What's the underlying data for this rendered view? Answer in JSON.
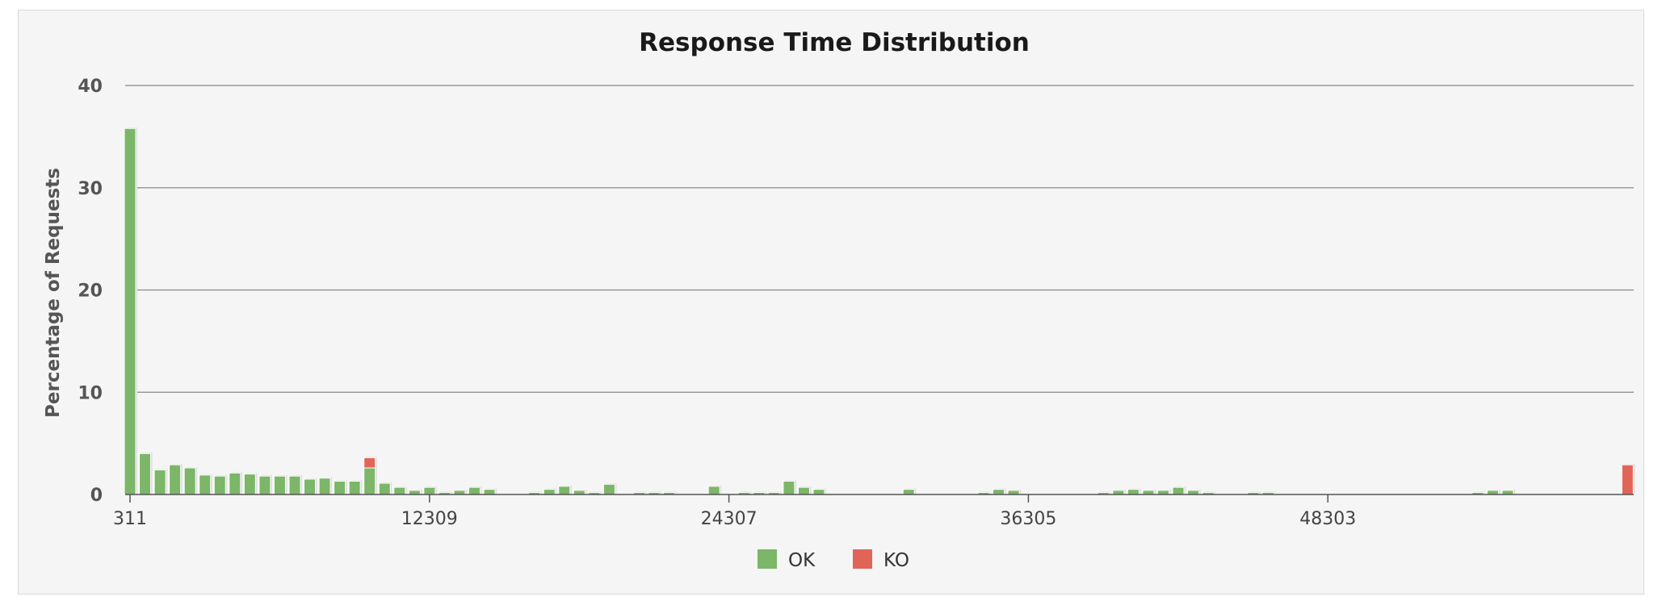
{
  "chart_data": {
    "type": "bar",
    "stacked": true,
    "title": "Response Time Distribution",
    "xlabel": "",
    "ylabel": "Percentage of Requests",
    "ylim": [
      0,
      40
    ],
    "yticks": [
      "0",
      "10",
      "20",
      "30",
      "40"
    ],
    "xlim": [
      311,
      60300
    ],
    "xticks": [
      311,
      12309,
      24307,
      36305,
      48303
    ],
    "grid": true,
    "legend_position": "bottom",
    "colors": {
      "OK": "#7cb668",
      "KO": "#e06558"
    },
    "series": [
      {
        "name": "OK",
        "points": [
          [
            311,
            35.8
          ],
          [
            911,
            4.0
          ],
          [
            1511,
            2.4
          ],
          [
            2111,
            2.9
          ],
          [
            2711,
            2.6
          ],
          [
            3311,
            1.9
          ],
          [
            3911,
            1.8
          ],
          [
            4511,
            2.1
          ],
          [
            5111,
            2.0
          ],
          [
            5711,
            1.8
          ],
          [
            6311,
            1.8
          ],
          [
            6911,
            1.8
          ],
          [
            7511,
            1.5
          ],
          [
            8111,
            1.6
          ],
          [
            8711,
            1.3
          ],
          [
            9311,
            1.3
          ],
          [
            9911,
            2.6
          ],
          [
            10511,
            1.1
          ],
          [
            11111,
            0.7
          ],
          [
            11711,
            0.4
          ],
          [
            12311,
            0.7
          ],
          [
            12911,
            0.2
          ],
          [
            13511,
            0.4
          ],
          [
            14111,
            0.7
          ],
          [
            14711,
            0.5
          ],
          [
            16511,
            0.2
          ],
          [
            17111,
            0.5
          ],
          [
            17711,
            0.8
          ],
          [
            18311,
            0.4
          ],
          [
            18911,
            0.2
          ],
          [
            19511,
            1.0
          ],
          [
            20711,
            0.2
          ],
          [
            21311,
            0.2
          ],
          [
            21911,
            0.2
          ],
          [
            23711,
            0.8
          ],
          [
            24911,
            0.2
          ],
          [
            25511,
            0.2
          ],
          [
            26111,
            0.2
          ],
          [
            26711,
            1.3
          ],
          [
            27311,
            0.7
          ],
          [
            27911,
            0.5
          ],
          [
            31511,
            0.5
          ],
          [
            34511,
            0.2
          ],
          [
            35111,
            0.5
          ],
          [
            35711,
            0.4
          ],
          [
            39311,
            0.2
          ],
          [
            39911,
            0.4
          ],
          [
            40511,
            0.5
          ],
          [
            41111,
            0.4
          ],
          [
            41711,
            0.4
          ],
          [
            42311,
            0.7
          ],
          [
            42911,
            0.4
          ],
          [
            43511,
            0.2
          ],
          [
            45311,
            0.2
          ],
          [
            45911,
            0.2
          ],
          [
            54311,
            0.2
          ],
          [
            54911,
            0.4
          ],
          [
            55511,
            0.4
          ]
        ]
      },
      {
        "name": "KO",
        "points": [
          [
            9911,
            1.0
          ],
          [
            60311,
            2.9
          ]
        ]
      }
    ]
  }
}
